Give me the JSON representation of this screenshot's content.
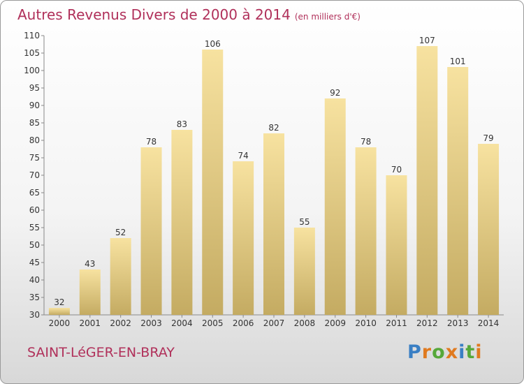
{
  "header": {
    "title": "Autres Revenus Divers de 2000 à 2014",
    "unit": "(en milliers d'€)"
  },
  "footer": {
    "place": "SAINT-LéGER-EN-BRAY",
    "logo": "Proxiti"
  },
  "colors": {
    "title": "#b0305a",
    "bar_light": "#f7e2a0",
    "bar_dark": "#c4ab62",
    "logo_letters": [
      "#3a7fc4",
      "#e07a1f",
      "#56a83a",
      "#e07a1f",
      "#3a7fc4",
      "#56a83a",
      "#e07a1f"
    ]
  },
  "chart_data": {
    "type": "bar",
    "categories": [
      "2000",
      "2001",
      "2002",
      "2003",
      "2004",
      "2005",
      "2006",
      "2007",
      "2008",
      "2009",
      "2010",
      "2011",
      "2012",
      "2013",
      "2014"
    ],
    "values": [
      32,
      43,
      52,
      78,
      83,
      106,
      74,
      82,
      55,
      92,
      78,
      70,
      107,
      101,
      79
    ],
    "ylim": [
      30,
      110
    ],
    "yticks": [
      30,
      35,
      40,
      45,
      50,
      55,
      60,
      65,
      70,
      75,
      80,
      85,
      90,
      95,
      100,
      105,
      110
    ],
    "grid": false,
    "data_labels": true
  }
}
